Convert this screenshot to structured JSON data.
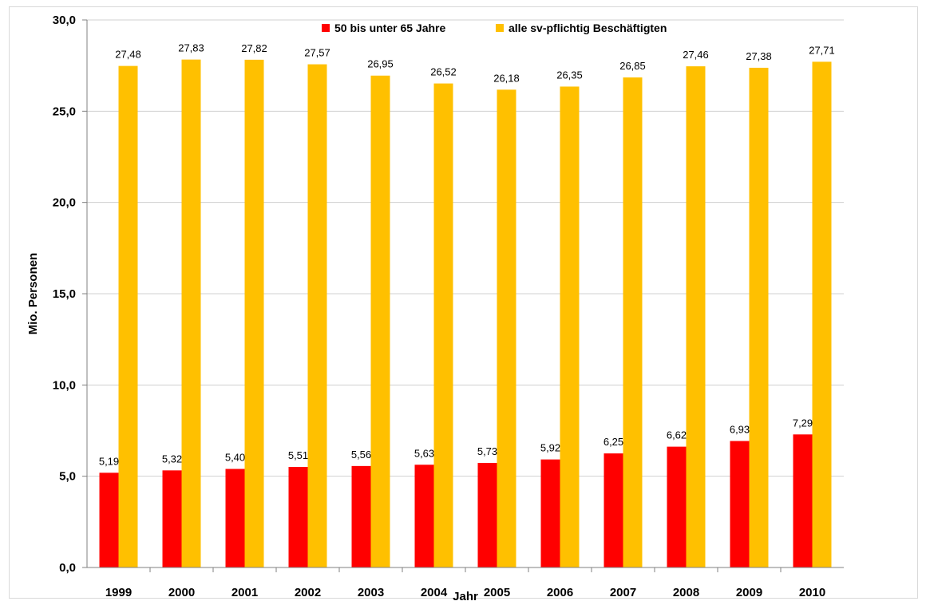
{
  "chart_data": {
    "type": "bar",
    "title": "",
    "xlabel": "Jahr",
    "ylabel": "Mio. Personen",
    "ylim": [
      0,
      30
    ],
    "yticks": [
      "0,0",
      "5,0",
      "10,0",
      "15,0",
      "20,0",
      "25,0",
      "30,0"
    ],
    "grid": true,
    "legend": "top-center",
    "categories": [
      "1999",
      "2000",
      "2001",
      "2002",
      "2003",
      "2004",
      "2005",
      "2006",
      "2007",
      "2008",
      "2009",
      "2010"
    ],
    "series": [
      {
        "name": "50 bis unter 65 Jahre",
        "color": "#ff0000",
        "values": [
          5.19,
          5.32,
          5.4,
          5.51,
          5.56,
          5.63,
          5.73,
          5.92,
          6.25,
          6.62,
          6.93,
          7.29
        ],
        "labels": [
          "5,19",
          "5,32",
          "5,40",
          "5,51",
          "5,56",
          "5,63",
          "5,73",
          "5,92",
          "6,25",
          "6,62",
          "6,93",
          "7,29"
        ]
      },
      {
        "name": "alle sv-pflichtig Beschäftigten",
        "color": "#ffc000",
        "values": [
          27.48,
          27.83,
          27.82,
          27.57,
          26.95,
          26.52,
          26.18,
          26.35,
          26.85,
          27.46,
          27.38,
          27.71
        ],
        "labels": [
          "27,48",
          "27,83",
          "27,82",
          "27,57",
          "26,95",
          "26,52",
          "26,18",
          "26,35",
          "26,85",
          "27,46",
          "27,38",
          "27,71"
        ]
      }
    ]
  }
}
